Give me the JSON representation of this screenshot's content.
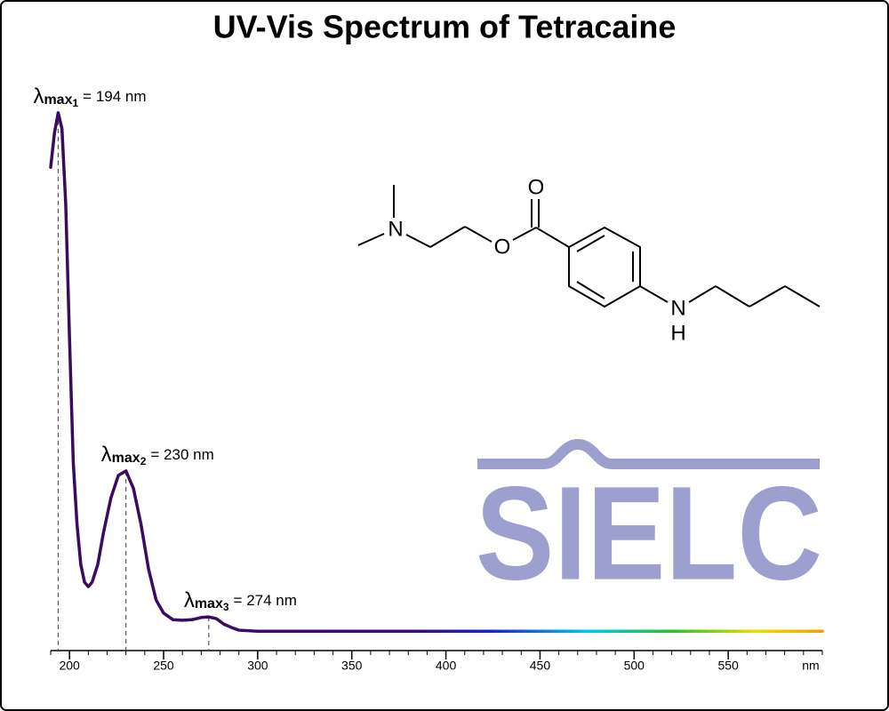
{
  "chart_data": {
    "type": "line",
    "title": "UV-Vis Spectrum of Tetracaine",
    "x_label": "nm",
    "x": [
      190,
      192,
      194,
      196,
      198,
      200,
      202,
      204,
      206,
      208,
      210,
      212,
      215,
      218,
      222,
      226,
      230,
      234,
      238,
      242,
      246,
      250,
      255,
      260,
      265,
      270,
      274,
      278,
      282,
      286,
      290,
      300,
      350,
      400,
      450,
      500,
      550,
      600
    ],
    "series": [
      {
        "values": [
          0.877,
          0.939,
          0.976,
          0.947,
          0.81,
          0.568,
          0.342,
          0.229,
          0.156,
          0.124,
          0.116,
          0.124,
          0.156,
          0.213,
          0.277,
          0.318,
          0.326,
          0.294,
          0.229,
          0.148,
          0.092,
          0.068,
          0.056,
          0.055,
          0.056,
          0.06,
          0.061,
          0.058,
          0.048,
          0.042,
          0.037,
          0.035,
          0.035,
          0.035,
          0.035,
          0.035,
          0.035,
          0.035
        ]
      }
    ],
    "gradient": [
      {
        "x": 190,
        "color": "#3a0b5c"
      },
      {
        "x": 380,
        "color": "#3a0b72"
      },
      {
        "x": 425,
        "color": "#1c20d0"
      },
      {
        "x": 475,
        "color": "#00c8e8"
      },
      {
        "x": 520,
        "color": "#28c028"
      },
      {
        "x": 565,
        "color": "#e6e000"
      },
      {
        "x": 600,
        "color": "#f5a000"
      }
    ],
    "xlim": [
      190,
      600
    ],
    "ylim": [
      0,
      1
    ],
    "xticks": [
      200,
      250,
      300,
      350,
      400,
      450,
      500,
      550
    ],
    "xminorticks": [
      190,
      210,
      220,
      230,
      240,
      260,
      270,
      280,
      290,
      310,
      320,
      330,
      340,
      360,
      370,
      380,
      390,
      410,
      420,
      430,
      440,
      460,
      470,
      480,
      490,
      510,
      520,
      530,
      540,
      560,
      570,
      580,
      590,
      600
    ],
    "annotations": [
      {
        "symbol": "λ",
        "sub": "max",
        "index": "1",
        "label": "= 194 nm",
        "x": 194
      },
      {
        "symbol": "λ",
        "sub": "max",
        "index": "2",
        "label": "= 230 nm",
        "x": 230
      },
      {
        "symbol": "λ",
        "sub": "max",
        "index": "3",
        "label": "= 274 nm",
        "x": 274
      }
    ]
  },
  "structure": {
    "atoms": [
      "N",
      "O",
      "O",
      "N",
      "H"
    ]
  },
  "logo": "SIELC"
}
